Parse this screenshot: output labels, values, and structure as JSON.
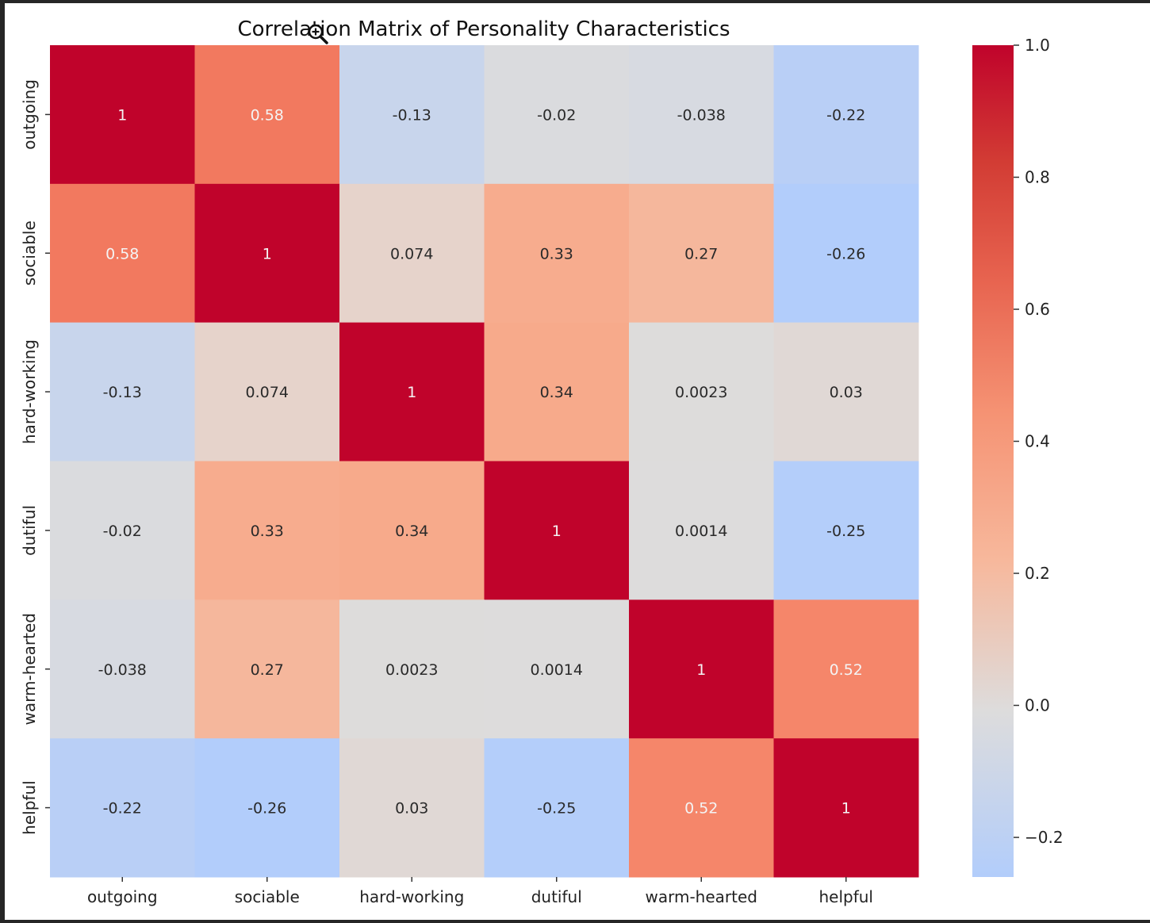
{
  "chart_data": {
    "type": "heatmap",
    "title": "Correlation Matrix of Personality Characteristics",
    "row_labels": [
      "outgoing",
      "sociable",
      "hard-working",
      "dutiful",
      "warm-hearted",
      "helpful"
    ],
    "col_labels": [
      "outgoing",
      "sociable",
      "hard-working",
      "dutiful",
      "warm-hearted",
      "helpful"
    ],
    "values": [
      [
        1,
        0.58,
        -0.13,
        -0.02,
        -0.038,
        -0.22
      ],
      [
        0.58,
        1,
        0.074,
        0.33,
        0.27,
        -0.26
      ],
      [
        -0.13,
        0.074,
        1,
        0.34,
        0.0023,
        0.03
      ],
      [
        -0.02,
        0.33,
        0.34,
        1,
        0.0014,
        -0.25
      ],
      [
        -0.038,
        0.27,
        0.0023,
        0.0014,
        1,
        0.52
      ],
      [
        -0.22,
        -0.26,
        0.03,
        -0.25,
        0.52,
        1
      ]
    ],
    "annotations": [
      [
        "1",
        "0.58",
        "-0.13",
        "-0.02",
        "-0.038",
        "-0.22"
      ],
      [
        "0.58",
        "1",
        "0.074",
        "0.33",
        "0.27",
        "-0.26"
      ],
      [
        "-0.13",
        "0.074",
        "1",
        "0.34",
        "0.0023",
        "0.03"
      ],
      [
        "-0.02",
        "0.33",
        "0.34",
        "1",
        "0.0014",
        "-0.25"
      ],
      [
        "-0.038",
        "0.27",
        "0.0023",
        "0.0014",
        "1",
        "0.52"
      ],
      [
        "-0.22",
        "-0.26",
        "0.03",
        "-0.25",
        "0.52",
        "1"
      ]
    ],
    "colormap": "coolwarm",
    "vmin": -0.26,
    "vmax": 1.0,
    "colorbar_ticks": [
      1.0,
      0.8,
      0.6,
      0.4,
      0.2,
      0.0,
      -0.2
    ],
    "colorbar_tick_labels": [
      "1.0",
      "0.8",
      "0.6",
      "0.4",
      "0.2",
      "0.0",
      "−0.2"
    ],
    "colors": {
      "low": "#b2cdfb",
      "mid": "#dddcdc",
      "high": "#c0032b"
    }
  },
  "overlay": {
    "cursor_icon": "zoom-in-icon"
  }
}
